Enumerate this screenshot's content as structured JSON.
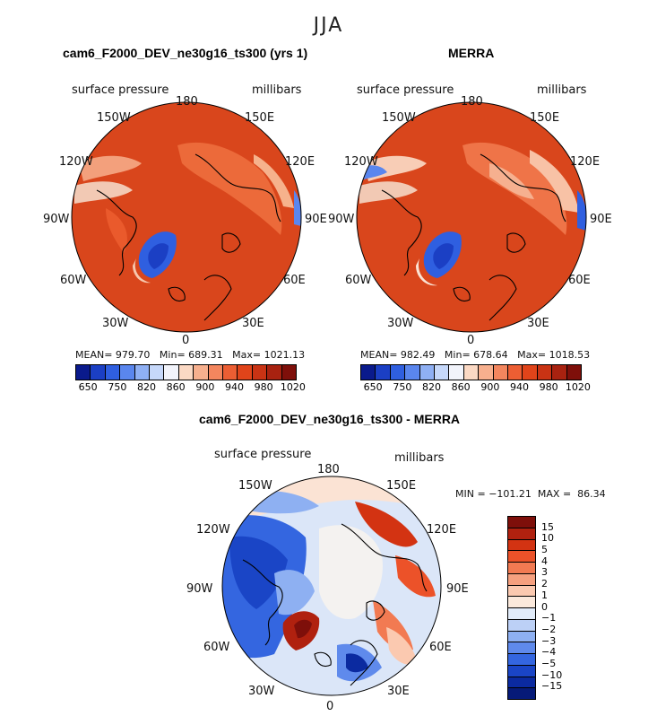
{
  "season": "JJA",
  "chart_data": [
    {
      "type": "heatmap",
      "title": "cam6_F2000_DEV_ne30g16_ts300 (yrs 1)",
      "variable": "surface pressure",
      "units": "millibars",
      "projection": "polar stereographic, north pole",
      "lon_labels": [
        "180",
        "150E",
        "120E",
        "90E",
        "60E",
        "30E",
        "0",
        "30W",
        "60W",
        "90W",
        "120W",
        "150W"
      ],
      "stats": {
        "mean_label": "MEAN=",
        "mean": "979.70",
        "min_label": "Min=",
        "min": "689.31",
        "max_label": "Max=",
        "max": "1021.13"
      },
      "colorbar_levels": [
        "650",
        "750",
        "820",
        "860",
        "900",
        "940",
        "980",
        "1020"
      ]
    },
    {
      "type": "heatmap",
      "title": "MERRA",
      "variable": "surface pressure",
      "units": "millibars",
      "projection": "polar stereographic, north pole",
      "lon_labels": [
        "180",
        "150E",
        "120E",
        "90E",
        "60E",
        "30E",
        "0",
        "30W",
        "60W",
        "90W",
        "120W",
        "150W"
      ],
      "stats": {
        "mean_label": "MEAN=",
        "mean": "982.49",
        "min_label": "Min=",
        "min": "678.64",
        "max_label": "Max=",
        "max": "1018.53"
      },
      "colorbar_levels": [
        "650",
        "750",
        "820",
        "860",
        "900",
        "940",
        "980",
        "1020"
      ]
    },
    {
      "type": "heatmap",
      "title": "cam6_F2000_DEV_ne30g16_ts300 - MERRA",
      "variable": "surface pressure",
      "units": "millibars",
      "projection": "polar stereographic, north pole",
      "lon_labels": [
        "180",
        "150E",
        "120E",
        "90E",
        "60E",
        "30E",
        "0",
        "30W",
        "60W",
        "90W",
        "120W",
        "150W"
      ],
      "stats": {
        "min_label": "MIN =",
        "min": "−101.21",
        "max_label": "MAX =",
        "max": "86.34"
      },
      "colorbar_levels": [
        "15",
        "10",
        "5",
        "4",
        "3",
        "2",
        "1",
        "0",
        "−1",
        "−2",
        "−3",
        "−4",
        "−5",
        "−10",
        "−15"
      ]
    }
  ],
  "colors": {
    "abs_scale": [
      "#0a1a8c",
      "#1b3fc4",
      "#2f5fe0",
      "#5a86ee",
      "#8fb0f4",
      "#c6d8fa",
      "#f2f4fb",
      "#fbd9c4",
      "#f7b08e",
      "#f3865e",
      "#ec5e33",
      "#e0441a",
      "#c93314",
      "#a82210",
      "#7e0f0a"
    ],
    "diff_scale": [
      "#7e0f0a",
      "#b0210f",
      "#d33312",
      "#ec5229",
      "#f27a52",
      "#f6a07f",
      "#fbc9b0",
      "#fbe9dc",
      "#e2ecfa",
      "#bcd0f6",
      "#8eb0f2",
      "#5f8aec",
      "#3466e0",
      "#1a45c6",
      "#0b2aa0",
      "#061a78"
    ]
  }
}
